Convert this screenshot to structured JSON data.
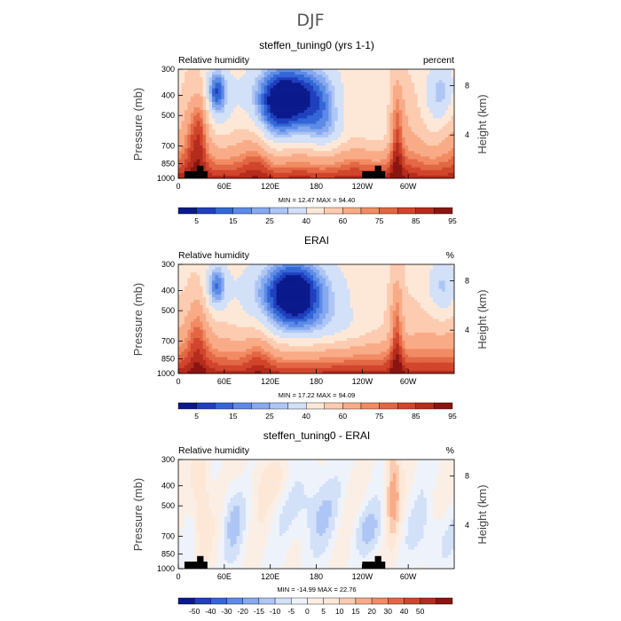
{
  "figure_title": "DJF",
  "colors": {
    "abs_scale": [
      "#0a1a8c",
      "#1f3fbf",
      "#3366d6",
      "#5c8ae6",
      "#86a9ef",
      "#aec6f5",
      "#d2e0f8",
      "#fde8d8",
      "#fccbb0",
      "#f9ab87",
      "#f18b63",
      "#e36744",
      "#d1452c",
      "#b52c1c",
      "#8a1510"
    ],
    "diff_scale": [
      "#0a1a8c",
      "#1f3fbf",
      "#3366d6",
      "#5c8ae6",
      "#86a9ef",
      "#aec6f5",
      "#d2e0f8",
      "#eef3fb",
      "#fbeee4",
      "#fde8d8",
      "#fccbb0",
      "#f9ab87",
      "#f18b63",
      "#e36744",
      "#d1452c",
      "#b52c1c",
      "#8a1510"
    ],
    "topography": "#000000"
  },
  "chart_data": [
    {
      "type": "heatmap",
      "title": "steffen_tuning0 (yrs 1-1)",
      "variable": "Relative humidity",
      "units": "percent",
      "ylabel": "Pressure (mb)",
      "ylabel_right": "Height (km)",
      "x_ticks": [
        "0",
        "60E",
        "120E",
        "180",
        "120W",
        "60W"
      ],
      "x_range_deg": [
        0,
        360
      ],
      "y_ticks": [
        "300",
        "400",
        "500",
        "700",
        "850",
        "1000"
      ],
      "y_range_mb": [
        300,
        1000
      ],
      "height_ticks": [
        "8",
        "4"
      ],
      "min": "12.47",
      "max": "94.40",
      "stats_text": "MIN =    12.47    MAX =    94.40",
      "colorbar_ticks": [
        "5",
        "15",
        "25",
        "40",
        "60",
        "75",
        "85",
        "95"
      ],
      "colorbar_levels": [
        5,
        10,
        15,
        20,
        25,
        30,
        40,
        50,
        60,
        70,
        75,
        80,
        85,
        90,
        95
      ],
      "land_lon_ranges": [
        [
          8,
          38
        ],
        [
          240,
          270
        ]
      ]
    },
    {
      "type": "heatmap",
      "title": "ERAI",
      "variable": "Relative humidity",
      "units": "%",
      "ylabel": "Pressure (mb)",
      "ylabel_right": "Height (km)",
      "x_ticks": [
        "0",
        "60E",
        "120E",
        "180",
        "120W",
        "60W"
      ],
      "x_range_deg": [
        0,
        360
      ],
      "y_ticks": [
        "300",
        "400",
        "500",
        "700",
        "850",
        "1000"
      ],
      "y_range_mb": [
        300,
        1000
      ],
      "height_ticks": [
        "8",
        "4"
      ],
      "min": "17.22",
      "max": "94.09",
      "stats_text": "MIN =    17.22    MAX =    94.09",
      "colorbar_ticks": [
        "5",
        "15",
        "25",
        "40",
        "60",
        "75",
        "85",
        "95"
      ],
      "colorbar_levels": [
        5,
        10,
        15,
        20,
        25,
        30,
        40,
        50,
        60,
        70,
        75,
        80,
        85,
        90,
        95
      ],
      "land_lon_ranges": []
    },
    {
      "type": "heatmap",
      "title": "steffen_tuning0 - ERAI",
      "variable": "Relative humidity",
      "units": "%",
      "ylabel": "Pressure (mb)",
      "ylabel_right": "Height (km)",
      "x_ticks": [
        "0",
        "60E",
        "120E",
        "180",
        "120W",
        "60W"
      ],
      "x_range_deg": [
        0,
        360
      ],
      "y_ticks": [
        "300",
        "400",
        "500",
        "700",
        "850",
        "1000"
      ],
      "y_range_mb": [
        300,
        1000
      ],
      "height_ticks": [
        "8",
        "4"
      ],
      "min": "-14.99",
      "max": "22.76",
      "stats_text": "MIN =   -14.99    MAX =    22.76",
      "colorbar_ticks": [
        "-50",
        "-40",
        "-30",
        "-20",
        "-15",
        "-10",
        "-5",
        "0",
        "5",
        "10",
        "15",
        "20",
        "30",
        "40",
        "50"
      ],
      "colorbar_levels": [
        -50,
        -40,
        -30,
        -20,
        -15,
        -10,
        -5,
        0,
        5,
        10,
        15,
        20,
        30,
        40,
        50
      ],
      "land_lon_ranges": [
        [
          8,
          38
        ],
        [
          240,
          270
        ]
      ]
    }
  ]
}
